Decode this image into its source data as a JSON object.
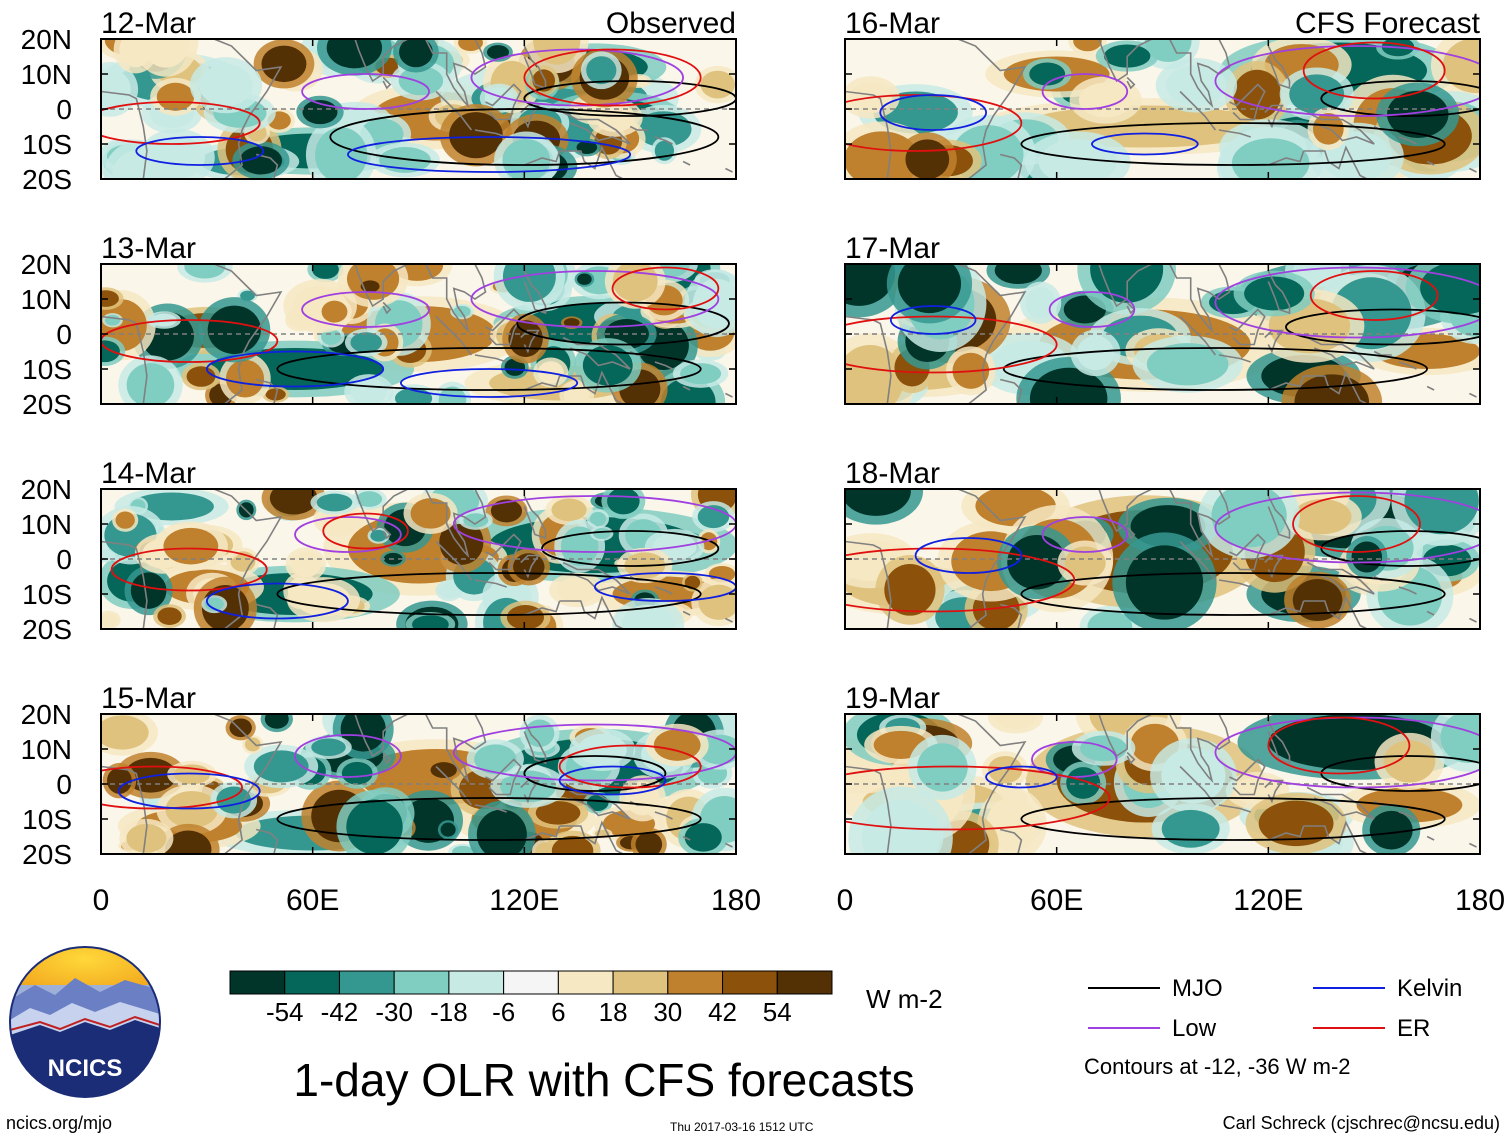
{
  "figure": {
    "title": "1-day OLR with CFS forecasts",
    "units": "W m-2",
    "url": "ncics.org/mjo",
    "timestamp": "Thu 2017-03-16 1512 UTC",
    "credit": "Carl Schreck (cjschrec@ncsu.edu)",
    "logo_text": "NCICS"
  },
  "colors": {
    "mjo": "#000000",
    "kelvin": "#1020e0",
    "low": "#a040e0",
    "er": "#e01010",
    "coast": "#808080",
    "equator": "#808080"
  },
  "chart_data": {
    "type": "heatmap",
    "title": "1-day OLR with CFS forecasts",
    "columns": [
      {
        "label": "Observed",
        "dates": [
          "12-Mar",
          "13-Mar",
          "14-Mar",
          "15-Mar"
        ]
      },
      {
        "label": "CFS Forecast",
        "dates": [
          "16-Mar",
          "17-Mar",
          "18-Mar",
          "19-Mar"
        ]
      }
    ],
    "x_ticks": [
      0,
      60,
      120,
      180
    ],
    "x_tick_labels": [
      "0",
      "60E",
      "120E",
      "180"
    ],
    "y_ticks": [
      20,
      10,
      0,
      -10,
      -20
    ],
    "y_tick_labels": [
      "20N",
      "10N",
      "0",
      "10S",
      "20S"
    ],
    "xlim": [
      0,
      180
    ],
    "ylim": [
      -20,
      20
    ],
    "colorbar": {
      "levels": [
        -54,
        -42,
        -30,
        -18,
        -6,
        6,
        18,
        30,
        42,
        54
      ],
      "level_labels": [
        "-54",
        "-42",
        "-30",
        "-18",
        "-6",
        "6",
        "18",
        "30",
        "42",
        "54"
      ],
      "colors": [
        "#01352a",
        "#05665a",
        "#359890",
        "#80cdc1",
        "#c7eae5",
        "#f5f5f5",
        "#f6e8c3",
        "#dfc27d",
        "#bf812d",
        "#8c510a",
        "#543005"
      ],
      "units": "W m-2"
    },
    "legend": {
      "items": [
        {
          "key": "mjo",
          "label": "MJO"
        },
        {
          "key": "kelvin",
          "label": "Kelvin"
        },
        {
          "key": "low",
          "label": "Low"
        },
        {
          "key": "er",
          "label": "ER"
        }
      ],
      "note": "Contours at -12, -36 W m-2"
    }
  }
}
